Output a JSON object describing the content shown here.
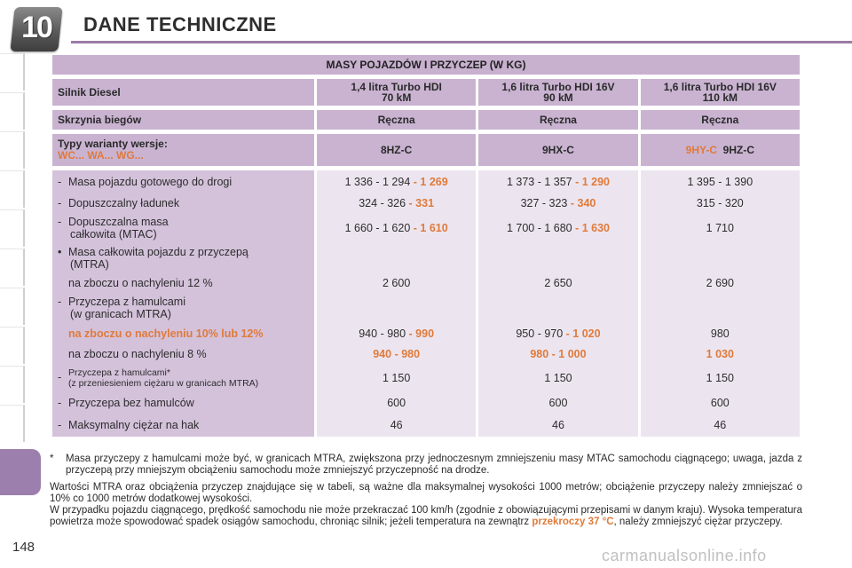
{
  "header": {
    "chapter": "10",
    "title": "DANE TECHNICZNE"
  },
  "table": {
    "title": "MASY POJAZDÓW I PRZYCZEP (W KG)",
    "engine_label": "Silnik Diesel",
    "engines": [
      {
        "line1": "1,4 litra Turbo HDI",
        "line2": "70 kM"
      },
      {
        "line1": "1,6 litra Turbo HDI 16V",
        "line2": "90 kM"
      },
      {
        "line1": "1,6 litra Turbo HDI 16V",
        "line2": "110 kM"
      }
    ],
    "gearbox_label": "Skrzynia biegów",
    "gearboxes": [
      "Ręczna",
      "Ręczna",
      "Ręczna"
    ],
    "types_label": "Typy warianty wersje:",
    "types_sub": "WC... WA... WG...",
    "types": [
      {
        "orange": "",
        "text": "8HZ-C"
      },
      {
        "orange": "",
        "text": "9HX-C"
      },
      {
        "orange": "9HY-C",
        "text": "9HZ-C"
      }
    ],
    "rows": [
      {
        "prefix": "-",
        "label": "Masa pojazdu gotowego do drogi",
        "label2": "",
        "cells": [
          {
            "text": "1 336 - 1 294",
            "orange": "- 1 269"
          },
          {
            "text": "1 373 - 1 357",
            "orange": "- 1 290"
          },
          {
            "text": "1 395 - 1 390",
            "orange": ""
          }
        ]
      },
      {
        "prefix": "-",
        "label": "Dopuszczalny ładunek",
        "label2": "",
        "cells": [
          {
            "text": "324 - 326",
            "orange": "- 331"
          },
          {
            "text": "327 - 323",
            "orange": "- 340"
          },
          {
            "text": "315 - 320",
            "orange": ""
          }
        ]
      },
      {
        "prefix": "-",
        "label": "Dopuszczalna masa",
        "label2": "całkowita (MTAC)",
        "cells": [
          {
            "text": "1 660 - 1 620",
            "orange": "- 1 610"
          },
          {
            "text": "1 700 - 1 680",
            "orange": "- 1 630"
          },
          {
            "text": "1 710",
            "orange": ""
          }
        ]
      },
      {
        "prefix": "•",
        "label": "Masa całkowita pojazdu z przyczepą",
        "label2": "(MTRA)",
        "cells": [
          {
            "text": "",
            "orange": ""
          },
          {
            "text": "",
            "orange": ""
          },
          {
            "text": "",
            "orange": ""
          }
        ]
      },
      {
        "prefix": "",
        "label": "na zboczu o nachyleniu 12 %",
        "label2": "",
        "cells": [
          {
            "text": "2 600",
            "orange": ""
          },
          {
            "text": "2 650",
            "orange": ""
          },
          {
            "text": "2 690",
            "orange": ""
          }
        ]
      },
      {
        "prefix": "-",
        "label": "Przyczepa z hamulcami",
        "label2": "(w granicach MTRA)",
        "cells": [
          {
            "text": "",
            "orange": ""
          },
          {
            "text": "",
            "orange": ""
          },
          {
            "text": "",
            "orange": ""
          }
        ]
      },
      {
        "prefix": "",
        "label_orange": "na zboczu o nachyleniu 10% lub 12%",
        "cells": [
          {
            "text": "940 - 980",
            "orange": "- 990"
          },
          {
            "text": "950 - 970",
            "orange": "- 1 020"
          },
          {
            "text": "980",
            "orange": ""
          }
        ]
      },
      {
        "prefix": "",
        "label": "na zboczu o nachyleniu 8 %",
        "label2": "",
        "cells": [
          {
            "text": "",
            "orange": "940 - 980"
          },
          {
            "text": "",
            "orange": "980 - 1 000"
          },
          {
            "text": "",
            "orange": "1 030"
          }
        ]
      },
      {
        "prefix": "-",
        "label_small": "Przyczepa z hamulcami*",
        "label_small2": "(z przeniesieniem ciężaru w granicach MTRA)",
        "cells": [
          {
            "text": "1 150",
            "orange": ""
          },
          {
            "text": "1 150",
            "orange": ""
          },
          {
            "text": "1 150",
            "orange": ""
          }
        ]
      },
      {
        "prefix": "-",
        "label": "Przyczepa bez hamulców",
        "label2": "",
        "cells": [
          {
            "text": "600",
            "orange": ""
          },
          {
            "text": "600",
            "orange": ""
          },
          {
            "text": "600",
            "orange": ""
          }
        ]
      },
      {
        "prefix": "-",
        "label": "Maksymalny ciężar na hak",
        "label2": "",
        "cells": [
          {
            "text": "46",
            "orange": ""
          },
          {
            "text": "46",
            "orange": ""
          },
          {
            "text": "46",
            "orange": ""
          }
        ]
      }
    ]
  },
  "footnote": {
    "star": "*",
    "text": "Masa przyczepy z hamulcami może być, w granicach MTRA, zwiększona przy jednoczesnym zmniejszeniu masy MTAC samochodu ciągnącego; uwaga, jazda z przyczepą przy mniejszym obciążeniu samochodu może zmniejszyć przyczepność na drodze."
  },
  "notes": {
    "p1": "Wartości MTRA oraz obciążenia przyczep znajdujące się w tabeli, są ważne dla maksymalnej wysokości 1000 metrów; obciążenie przyczepy należy zmniejszać o 10% co 1000 metrów dodatkowej wysokości.",
    "p2_a": "W przypadku pojazdu ciągnącego, prędkość samochodu nie może przekraczać 100 km/h (zgodnie z obowiązującymi przepisami w danym kraju). Wysoka temperatura powietrza może spowodować spadek osiągów samochodu, chroniąc silnik; jeżeli temperatura na zewnątrz",
    "p2_orange": "przekroczy 37 °C",
    "p2_b": ", należy zmniejszyć ciężar przyczepy."
  },
  "page_number": "148",
  "watermark": "carmanualsonline.info"
}
